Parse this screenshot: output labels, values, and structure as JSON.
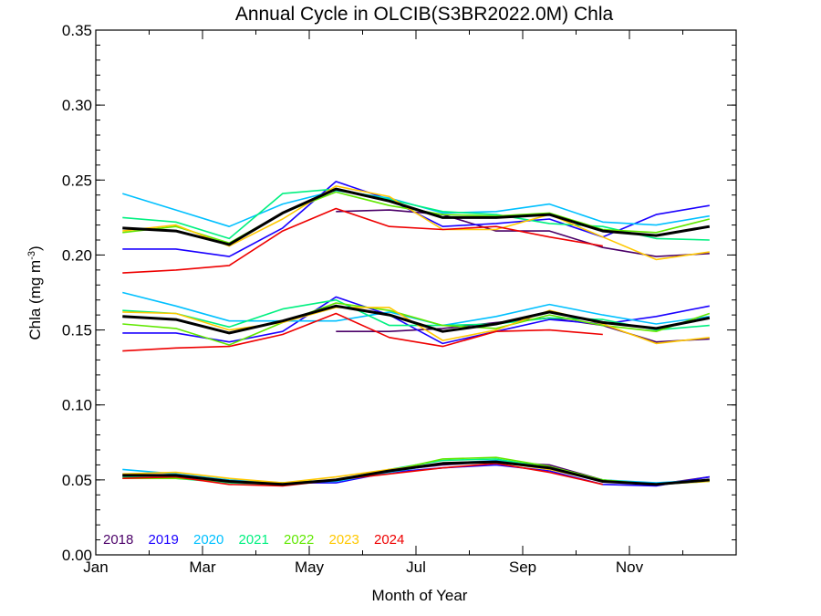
{
  "chart_data": {
    "type": "line",
    "title": "Annual Cycle in OLCIB(S3BR2022.0M) Chla",
    "xlabel": "Month of Year",
    "ylabel": "Chla (mg m",
    "ylabel_sup": "-3",
    "ylabel_end": ")",
    "xlim": [
      1,
      13
    ],
    "ylim": [
      0.0,
      0.35
    ],
    "yticks": [
      "0.00",
      "0.05",
      "0.10",
      "0.15",
      "0.20",
      "0.25",
      "0.30",
      "0.35"
    ],
    "ytick_values": [
      0.0,
      0.05,
      0.1,
      0.15,
      0.2,
      0.25,
      0.3,
      0.35
    ],
    "xticks": [
      "Jan",
      "Mar",
      "May",
      "Jul",
      "Sep",
      "Nov"
    ],
    "xtick_values": [
      1,
      3,
      5,
      7,
      9,
      11
    ],
    "grid": false,
    "legend_position": "bottom-left",
    "x": [
      1.5,
      2.5,
      3.5,
      4.5,
      5.5,
      6.5,
      7.5,
      8.5,
      9.5,
      10.5,
      11.5,
      12.5
    ],
    "series": [
      {
        "name": "2018",
        "color": "#4b0068",
        "values": {
          "high": [
            null,
            null,
            null,
            null,
            0.229,
            0.23,
            0.227,
            0.216,
            0.216,
            0.205,
            0.199,
            0.201
          ],
          "mid": [
            null,
            null,
            null,
            null,
            0.149,
            0.149,
            0.151,
            0.155,
            0.158,
            0.153,
            0.142,
            0.144
          ],
          "low": [
            null,
            null,
            null,
            null,
            null,
            0.056,
            0.06,
            0.062,
            0.06,
            0.05,
            0.047,
            0.052
          ]
        }
      },
      {
        "name": "2019",
        "color": "#1a00ff",
        "values": {
          "high": [
            0.204,
            0.204,
            0.199,
            0.218,
            0.249,
            0.237,
            0.219,
            0.221,
            0.224,
            0.212,
            0.227,
            0.233
          ],
          "mid": [
            0.148,
            0.148,
            0.142,
            0.149,
            0.172,
            0.16,
            0.141,
            0.149,
            0.157,
            0.154,
            0.159,
            0.166
          ],
          "low": [
            0.053,
            0.053,
            0.049,
            0.048,
            0.048,
            0.055,
            0.058,
            0.06,
            0.056,
            0.047,
            0.046,
            0.052
          ]
        }
      },
      {
        "name": "2020",
        "color": "#00c0ff",
        "values": {
          "high": [
            0.241,
            0.23,
            0.219,
            0.234,
            0.243,
            0.238,
            0.228,
            0.229,
            0.234,
            0.222,
            0.22,
            0.226
          ],
          "mid": [
            0.175,
            0.166,
            0.156,
            0.156,
            0.156,
            0.162,
            0.153,
            0.159,
            0.167,
            0.16,
            0.154,
            0.159
          ],
          "low": [
            0.057,
            0.054,
            0.05,
            0.048,
            0.049,
            0.055,
            0.061,
            0.063,
            0.058,
            0.05,
            0.048,
            0.05
          ]
        }
      },
      {
        "name": "2021",
        "color": "#00f080",
        "values": {
          "high": [
            0.225,
            0.222,
            0.211,
            0.241,
            0.244,
            0.237,
            0.229,
            0.227,
            0.221,
            0.219,
            0.211,
            0.21
          ],
          "mid": [
            0.163,
            0.161,
            0.152,
            0.164,
            0.17,
            0.153,
            0.153,
            0.154,
            0.158,
            0.157,
            0.15,
            0.153
          ],
          "low": [
            0.052,
            0.051,
            0.048,
            0.047,
            0.05,
            0.057,
            0.063,
            0.064,
            0.058,
            0.05,
            0.047,
            0.049
          ]
        }
      },
      {
        "name": "2022",
        "color": "#60e800",
        "values": {
          "high": [
            0.215,
            0.219,
            0.208,
            0.228,
            0.242,
            0.233,
            0.227,
            0.226,
            0.228,
            0.217,
            0.215,
            0.224
          ],
          "mid": [
            0.154,
            0.151,
            0.14,
            0.155,
            0.168,
            0.163,
            0.153,
            0.151,
            0.16,
            0.153,
            0.149,
            0.161
          ],
          "low": [
            0.051,
            0.051,
            0.049,
            0.048,
            0.05,
            0.056,
            0.064,
            0.065,
            0.059,
            0.05,
            0.047,
            0.05
          ]
        }
      },
      {
        "name": "2023",
        "color": "#ffc800",
        "values": {
          "high": [
            0.216,
            0.22,
            0.206,
            0.224,
            0.246,
            0.239,
            0.217,
            0.217,
            0.227,
            0.212,
            0.197,
            0.202
          ],
          "mid": [
            0.162,
            0.161,
            0.15,
            0.155,
            0.165,
            0.165,
            0.143,
            0.15,
            0.163,
            0.154,
            0.141,
            0.145
          ],
          "low": [
            0.054,
            0.055,
            0.051,
            0.048,
            0.052,
            0.057,
            0.061,
            0.062,
            0.057,
            0.049,
            0.047,
            0.049
          ]
        }
      },
      {
        "name": "2024",
        "color": "#ee0000",
        "values": {
          "high": [
            0.188,
            0.19,
            0.193,
            0.216,
            0.231,
            0.219,
            0.217,
            0.219,
            0.212,
            0.206,
            null,
            null
          ],
          "mid": [
            0.136,
            0.138,
            0.139,
            0.147,
            0.161,
            0.145,
            0.139,
            0.149,
            0.15,
            0.147,
            null,
            null
          ],
          "low": [
            0.051,
            0.052,
            0.047,
            0.046,
            0.05,
            0.054,
            0.058,
            0.061,
            0.055,
            0.047,
            null,
            null
          ]
        }
      }
    ],
    "mean": {
      "color": "#000000",
      "values": {
        "high": [
          0.218,
          0.216,
          0.207,
          0.228,
          0.244,
          0.236,
          0.225,
          0.225,
          0.227,
          0.216,
          0.213,
          0.219
        ],
        "mid": [
          0.159,
          0.157,
          0.148,
          0.156,
          0.166,
          0.16,
          0.149,
          0.154,
          0.162,
          0.155,
          0.151,
          0.158
        ],
        "low": [
          0.053,
          0.053,
          0.049,
          0.047,
          0.05,
          0.056,
          0.061,
          0.062,
          0.058,
          0.049,
          0.047,
          0.05
        ]
      }
    }
  }
}
